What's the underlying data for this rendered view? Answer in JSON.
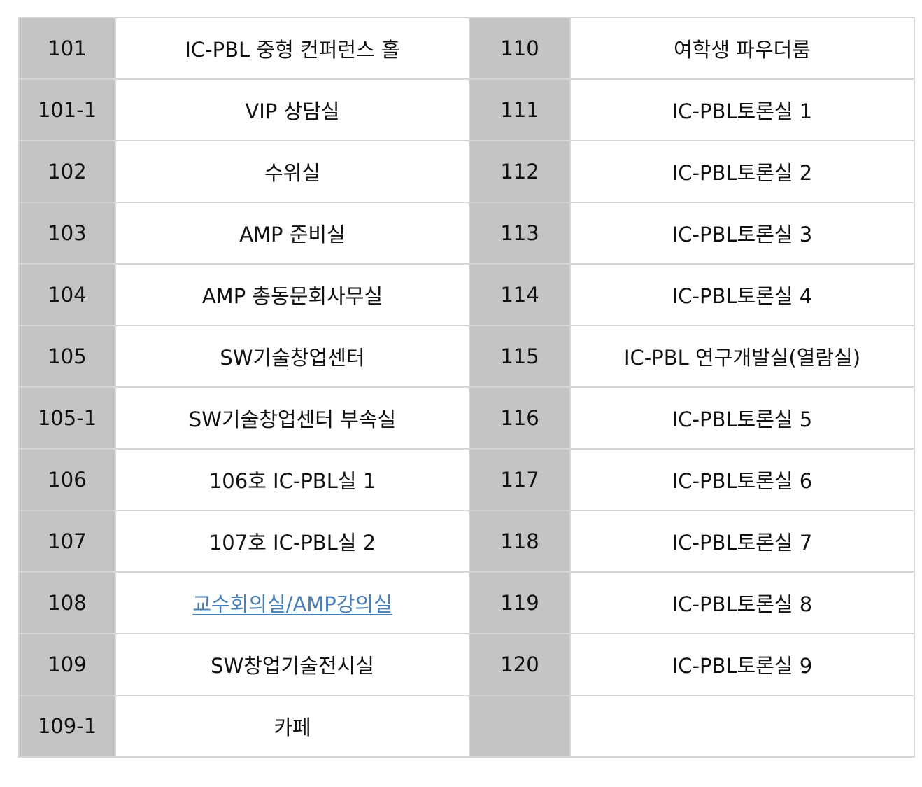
{
  "rows": [
    {
      "left_no": "101",
      "left_name": "IC-PBL 중형 컨퍼런스 홀",
      "right_no": "110",
      "right_name": "여학생 파우더룸"
    },
    {
      "left_no": "101-1",
      "left_name": "VIP 상담실",
      "right_no": "111",
      "right_name": "IC-PBL토론실 1"
    },
    {
      "left_no": "102",
      "left_name": "수위실",
      "right_no": "112",
      "right_name": "IC-PBL토론실 2"
    },
    {
      "left_no": "103",
      "left_name": "AMP 준비실",
      "right_no": "113",
      "right_name": "IC-PBL토론실 3"
    },
    {
      "left_no": "104",
      "left_name": "AMP 총동문회사무실",
      "right_no": "114",
      "right_name": "IC-PBL토론실 4"
    },
    {
      "left_no": "105",
      "left_name": "SW기술창업센터",
      "right_no": "115",
      "right_name": "IC-PBL 연구개발실(열람실)"
    },
    {
      "left_no": "105-1",
      "left_name": "SW기술창업센터 부속실",
      "right_no": "116",
      "right_name": "IC-PBL토론실 5"
    },
    {
      "left_no": "106",
      "left_name": "106호 IC-PBL실 1",
      "right_no": "117",
      "right_name": "IC-PBL토론실 6"
    },
    {
      "left_no": "107",
      "left_name": "107호 IC-PBL실 2",
      "right_no": "118",
      "right_name": "IC-PBL토론실 7"
    },
    {
      "left_no": "108",
      "left_name": "교수회의실/AMP강의실",
      "right_no": "119",
      "right_name": "IC-PBL토론실 8"
    },
    {
      "left_no": "109",
      "left_name": "SW창업기술전시실",
      "right_no": "120",
      "right_name": "IC-PBL토론실 9"
    },
    {
      "left_no": "109-1",
      "left_name": "카페",
      "right_no": "",
      "right_name": ""
    }
  ],
  "colors": {
    "number_cell_bg": "#c4c4c4",
    "border": "#d6d6d6",
    "link": "#4a7fb5"
  }
}
